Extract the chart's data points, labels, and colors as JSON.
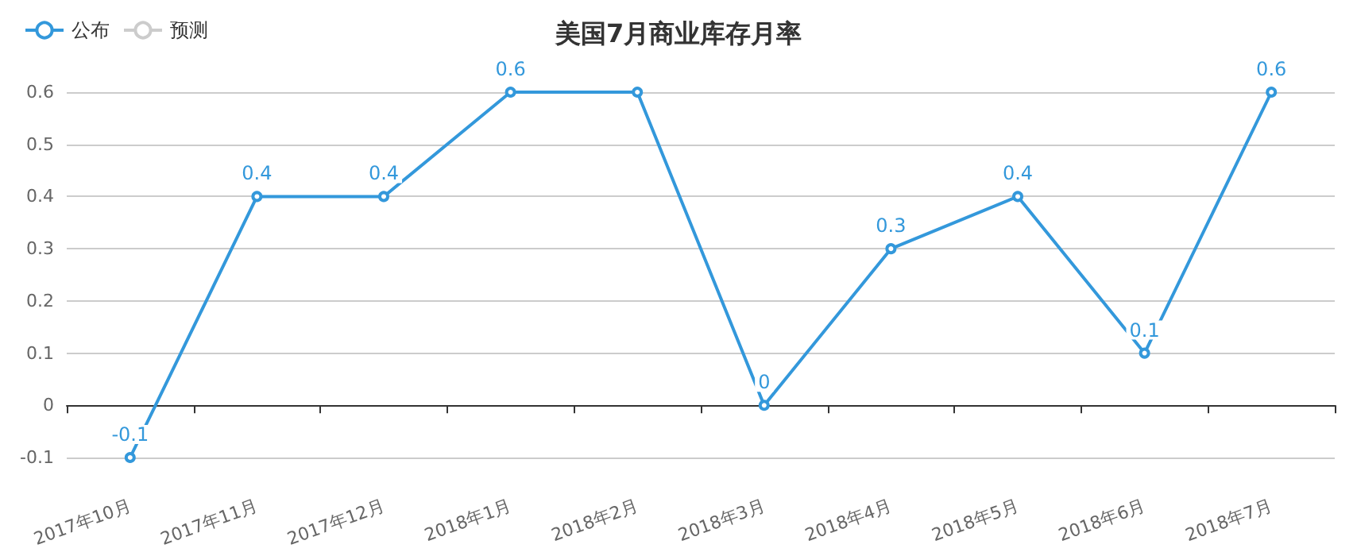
{
  "chart_data": {
    "type": "line",
    "title": "美国7月商业库存月率",
    "categories": [
      "2017年10月",
      "2017年11月",
      "2017年12月",
      "2018年1月",
      "2018年2月",
      "2018年3月",
      "2018年4月",
      "2018年5月",
      "2018年6月",
      "2018年7月"
    ],
    "series": [
      {
        "name": "公布",
        "color": "#3398db",
        "values": [
          -0.1,
          0.4,
          0.4,
          0.6,
          0.6,
          0,
          0.3,
          0.4,
          0.1,
          0.6
        ],
        "value_labels": [
          "-0.1",
          "0.4",
          "0.4",
          "0.6",
          null,
          "0",
          "0.3",
          "0.4",
          "0.1",
          "0.6"
        ]
      },
      {
        "name": "预测",
        "color": "#cccccc",
        "values": [
          null,
          null,
          null,
          null,
          null,
          null,
          null,
          null,
          null,
          null
        ]
      }
    ],
    "ylim": [
      -0.1,
      0.6
    ],
    "yticks": [
      -0.1,
      0,
      0.1,
      0.2,
      0.3,
      0.4,
      0.5,
      0.6
    ],
    "grid": "y",
    "legend": "top left",
    "marker": "circle",
    "line_style": "solid"
  }
}
